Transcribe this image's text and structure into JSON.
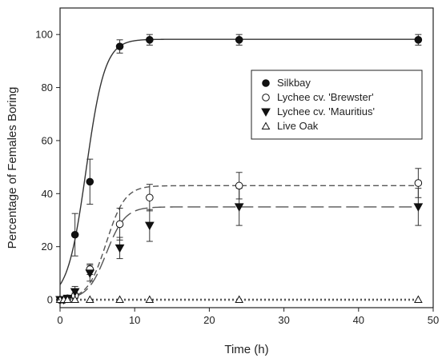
{
  "chart_data": {
    "type": "scatter",
    "xlabel": "Time (h)",
    "ylabel": "Percentage of Females Boring",
    "xlim": [
      0,
      50
    ],
    "ylim": [
      -3,
      110
    ],
    "xticks": [
      0,
      10,
      20,
      30,
      40,
      50
    ],
    "yticks": [
      0,
      20,
      40,
      60,
      80,
      100
    ],
    "legend_position": "top-right",
    "grid": false,
    "series": [
      {
        "name": "Silkbay",
        "marker": "filled-circle",
        "x": [
          0,
          0.5,
          1,
          2,
          4,
          8,
          12,
          24,
          48
        ],
        "y": [
          0,
          0,
          0.5,
          24.5,
          44.5,
          95.5,
          98,
          98,
          98
        ],
        "err": [
          0,
          0,
          0.5,
          8,
          8.5,
          2.5,
          2,
          2,
          2
        ],
        "fit": {
          "style": "solid",
          "asymptote": 98.2,
          "x50": 3.5,
          "k": 0.8
        }
      },
      {
        "name": "Lychee cv. 'Brewster'",
        "marker": "open-circle",
        "x": [
          0,
          0.5,
          1,
          2,
          4,
          8,
          12,
          24,
          48
        ],
        "y": [
          0,
          0,
          0.5,
          1.5,
          11.5,
          28.5,
          38.5,
          43,
          44
        ],
        "err": [
          0,
          0,
          0.5,
          1,
          2,
          6,
          5,
          5,
          5.5
        ],
        "fit": {
          "style": "short-dash",
          "asymptote": 43,
          "x50": 6.2,
          "k": 0.8
        }
      },
      {
        "name": "Lychee cv. 'Mauritius'",
        "marker": "filled-triangle-down",
        "x": [
          0,
          0.5,
          1,
          2,
          4,
          8,
          12,
          24,
          48
        ],
        "y": [
          0,
          0,
          0.5,
          3,
          10,
          19.5,
          28,
          35,
          35
        ],
        "err": [
          0,
          0,
          0.5,
          2,
          3,
          4,
          6,
          7,
          7
        ],
        "fit": {
          "style": "long-dash",
          "asymptote": 35,
          "x50": 6.2,
          "k": 0.8
        }
      },
      {
        "name": "Live Oak",
        "marker": "open-triangle-up",
        "x": [
          0,
          0.5,
          1,
          2,
          4,
          8,
          12,
          24,
          48
        ],
        "y": [
          0,
          0,
          0,
          0,
          0,
          0,
          0,
          0,
          0
        ],
        "err": [
          0,
          0,
          0,
          0,
          0,
          0,
          0,
          0,
          0
        ],
        "fit": {
          "style": "dotted",
          "asymptote": 0,
          "x50": 0,
          "k": 1
        }
      }
    ]
  }
}
